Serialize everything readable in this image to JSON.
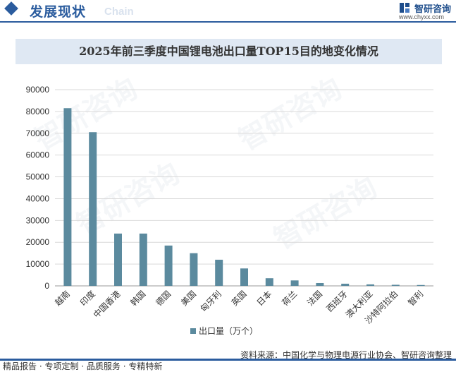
{
  "header": {
    "title": "发展现状",
    "subtitle": "Chain",
    "logo_name": "智研咨询",
    "logo_url": "www.chyxx.com"
  },
  "footer": {
    "left": "精品报告 · 专项定制 · 品质服务 · 专精特新",
    "source": "资料来源：中国化学与物理电源行业协会、智研咨询整理"
  },
  "watermark": "智研咨询",
  "colors": {
    "bar": "#5b8a9e",
    "accent": "#2b5c9e"
  },
  "chart_data": {
    "type": "bar",
    "title": "2025年前三季度中国锂电池出口量TOP15目的地变化情况",
    "categories": [
      "越南",
      "印度",
      "中国香港",
      "韩国",
      "德国",
      "美国",
      "匈牙利",
      "英国",
      "日本",
      "荷兰",
      "法国",
      "西班牙",
      "澳大利亚",
      "沙特阿拉伯",
      "智利"
    ],
    "series": [
      {
        "name": "出口量（万个）",
        "values": [
          81500,
          70500,
          24000,
          24000,
          18500,
          15000,
          12000,
          8000,
          3500,
          2500,
          1300,
          1000,
          700,
          500,
          400
        ]
      }
    ],
    "ylim": [
      0,
      90000
    ],
    "yticks": [
      0,
      10000,
      20000,
      30000,
      40000,
      50000,
      60000,
      70000,
      80000,
      90000
    ],
    "grid": true,
    "legend_position": "bottom"
  }
}
